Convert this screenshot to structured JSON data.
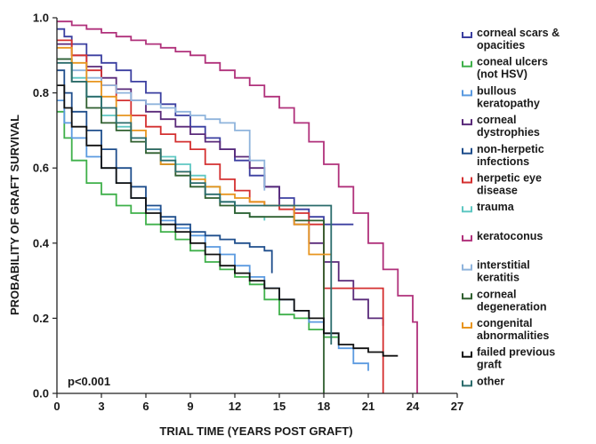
{
  "chart_data": {
    "type": "line",
    "step": true,
    "xlabel": "TRIAL TIME (YEARS POST GRAFT)",
    "ylabel": "PROBABILITY OF GRAFT SURVIVAL",
    "xlim": [
      0,
      27
    ],
    "ylim": [
      0,
      1
    ],
    "xticks": [
      "0",
      "3",
      "6",
      "9",
      "12",
      "15",
      "18",
      "21",
      "24",
      "27"
    ],
    "yticks": [
      "0.0",
      "0.2",
      "0.4",
      "0.6",
      "0.8",
      "1.0"
    ],
    "annotation": "p<0.001",
    "legend_position": "right",
    "series": [
      {
        "name": "corneal scars & opacities",
        "color": "#3b3fa0",
        "points": [
          [
            0,
            0.97
          ],
          [
            0.5,
            0.95
          ],
          [
            1,
            0.93
          ],
          [
            2,
            0.9
          ],
          [
            3,
            0.88
          ],
          [
            4,
            0.86
          ],
          [
            5,
            0.83
          ],
          [
            6,
            0.8
          ],
          [
            7,
            0.77
          ],
          [
            8,
            0.74
          ],
          [
            9,
            0.71
          ],
          [
            10,
            0.68
          ],
          [
            11,
            0.65
          ],
          [
            12,
            0.62
          ],
          [
            13,
            0.58
          ],
          [
            14,
            0.55
          ],
          [
            15,
            0.52
          ],
          [
            16,
            0.49
          ],
          [
            17,
            0.47
          ],
          [
            18,
            0.45
          ],
          [
            20,
            0.45
          ]
        ]
      },
      {
        "name": "coneal ulcers (not HSV)",
        "color": "#3fb04a",
        "points": [
          [
            0,
            0.75
          ],
          [
            0.5,
            0.68
          ],
          [
            1,
            0.62
          ],
          [
            2,
            0.56
          ],
          [
            3,
            0.53
          ],
          [
            4,
            0.5
          ],
          [
            5,
            0.48
          ],
          [
            6,
            0.45
          ],
          [
            7,
            0.43
          ],
          [
            8,
            0.41
          ],
          [
            9,
            0.38
          ],
          [
            10,
            0.35
          ],
          [
            11,
            0.33
          ],
          [
            12,
            0.31
          ],
          [
            13,
            0.29
          ],
          [
            14,
            0.25
          ],
          [
            15,
            0.21
          ],
          [
            16,
            0.2
          ],
          [
            17,
            0.17
          ],
          [
            18,
            0.15
          ],
          [
            19,
            0.13
          ]
        ]
      },
      {
        "name": "bullous keratopathy",
        "color": "#5b9ae0",
        "points": [
          [
            0,
            0.78
          ],
          [
            0.5,
            0.72
          ],
          [
            1,
            0.68
          ],
          [
            2,
            0.63
          ],
          [
            3,
            0.6
          ],
          [
            4,
            0.56
          ],
          [
            5,
            0.52
          ],
          [
            6,
            0.49
          ],
          [
            7,
            0.46
          ],
          [
            8,
            0.44
          ],
          [
            9,
            0.42
          ],
          [
            10,
            0.39
          ],
          [
            11,
            0.37
          ],
          [
            12,
            0.34
          ],
          [
            13,
            0.31
          ],
          [
            14,
            0.28
          ],
          [
            15,
            0.25
          ],
          [
            16,
            0.22
          ],
          [
            17,
            0.19
          ],
          [
            18,
            0.16
          ],
          [
            19,
            0.12
          ],
          [
            20,
            0.08
          ],
          [
            21,
            0.06
          ]
        ]
      },
      {
        "name": "corneal dystrophies",
        "color": "#5a2a7a",
        "points": [
          [
            0,
            0.93
          ],
          [
            1,
            0.9
          ],
          [
            2,
            0.87
          ],
          [
            3,
            0.84
          ],
          [
            4,
            0.81
          ],
          [
            5,
            0.78
          ],
          [
            6,
            0.75
          ],
          [
            7,
            0.73
          ],
          [
            8,
            0.71
          ],
          [
            9,
            0.69
          ],
          [
            10,
            0.67
          ],
          [
            11,
            0.65
          ],
          [
            12,
            0.63
          ],
          [
            13,
            0.6
          ],
          [
            14,
            0.55
          ],
          [
            15,
            0.5
          ],
          [
            16,
            0.45
          ],
          [
            17,
            0.4
          ],
          [
            18,
            0.35
          ],
          [
            19,
            0.3
          ],
          [
            20,
            0.25
          ],
          [
            21,
            0.2
          ],
          [
            22,
            0.18
          ]
        ]
      },
      {
        "name": "non-herpetic infections",
        "color": "#1f4e8c",
        "points": [
          [
            0,
            0.86
          ],
          [
            0.5,
            0.8
          ],
          [
            1,
            0.75
          ],
          [
            2,
            0.7
          ],
          [
            3,
            0.65
          ],
          [
            4,
            0.6
          ],
          [
            5,
            0.55
          ],
          [
            6,
            0.5
          ],
          [
            7,
            0.47
          ],
          [
            8,
            0.45
          ],
          [
            9,
            0.43
          ],
          [
            10,
            0.42
          ],
          [
            11,
            0.41
          ],
          [
            12,
            0.4
          ],
          [
            13,
            0.39
          ],
          [
            14,
            0.38
          ],
          [
            14.5,
            0.32
          ]
        ]
      },
      {
        "name": "herpetic eye disease",
        "color": "#d43030",
        "points": [
          [
            0,
            0.94
          ],
          [
            1,
            0.9
          ],
          [
            2,
            0.86
          ],
          [
            3,
            0.82
          ],
          [
            4,
            0.78
          ],
          [
            5,
            0.74
          ],
          [
            6,
            0.71
          ],
          [
            7,
            0.69
          ],
          [
            8,
            0.67
          ],
          [
            9,
            0.65
          ],
          [
            10,
            0.61
          ],
          [
            11,
            0.57
          ],
          [
            12,
            0.54
          ],
          [
            13,
            0.51
          ],
          [
            14,
            0.5
          ],
          [
            15,
            0.49
          ],
          [
            16,
            0.48
          ],
          [
            17,
            0.45
          ],
          [
            18,
            0.28
          ],
          [
            20,
            0.28
          ],
          [
            21,
            0.28
          ],
          [
            22,
            0.0
          ]
        ]
      },
      {
        "name": "trauma",
        "color": "#5ec7c2",
        "points": [
          [
            0,
            0.89
          ],
          [
            1,
            0.84
          ],
          [
            2,
            0.79
          ],
          [
            3,
            0.74
          ],
          [
            4,
            0.71
          ],
          [
            5,
            0.68
          ],
          [
            6,
            0.65
          ],
          [
            7,
            0.63
          ],
          [
            8,
            0.61
          ],
          [
            9,
            0.58
          ],
          [
            10,
            0.55
          ],
          [
            11,
            0.51
          ],
          [
            12,
            0.48
          ],
          [
            13,
            0.47
          ],
          [
            14,
            0.46
          ]
        ]
      },
      {
        "name": "keratoconus",
        "color": "#b0317b",
        "points": [
          [
            0,
            0.99
          ],
          [
            1,
            0.98
          ],
          [
            2,
            0.97
          ],
          [
            3,
            0.96
          ],
          [
            4,
            0.95
          ],
          [
            5,
            0.94
          ],
          [
            6,
            0.93
          ],
          [
            7,
            0.92
          ],
          [
            8,
            0.91
          ],
          [
            9,
            0.9
          ],
          [
            10,
            0.88
          ],
          [
            11,
            0.86
          ],
          [
            12,
            0.84
          ],
          [
            13,
            0.82
          ],
          [
            14,
            0.79
          ],
          [
            15,
            0.76
          ],
          [
            16,
            0.72
          ],
          [
            17,
            0.67
          ],
          [
            18,
            0.61
          ],
          [
            19,
            0.55
          ],
          [
            20,
            0.48
          ],
          [
            21,
            0.4
          ],
          [
            22,
            0.33
          ],
          [
            23,
            0.26
          ],
          [
            24,
            0.19
          ],
          [
            24.3,
            0.0
          ]
        ]
      },
      {
        "name": "interstitial keratitis",
        "color": "#8fb4dc",
        "points": [
          [
            0,
            0.89
          ],
          [
            1,
            0.86
          ],
          [
            2,
            0.84
          ],
          [
            3,
            0.82
          ],
          [
            4,
            0.8
          ],
          [
            5,
            0.78
          ],
          [
            6,
            0.77
          ],
          [
            7,
            0.76
          ],
          [
            8,
            0.75
          ],
          [
            9,
            0.74
          ],
          [
            10,
            0.73
          ],
          [
            11,
            0.72
          ],
          [
            12,
            0.7
          ],
          [
            13,
            0.62
          ],
          [
            14,
            0.54
          ]
        ]
      },
      {
        "name": "corneal degeneration",
        "color": "#2f5f2f",
        "points": [
          [
            0,
            0.89
          ],
          [
            1,
            0.83
          ],
          [
            2,
            0.76
          ],
          [
            3,
            0.72
          ],
          [
            4,
            0.7
          ],
          [
            5,
            0.67
          ],
          [
            6,
            0.64
          ],
          [
            7,
            0.61
          ],
          [
            8,
            0.58
          ],
          [
            9,
            0.55
          ],
          [
            10,
            0.52
          ],
          [
            11,
            0.5
          ],
          [
            12,
            0.48
          ],
          [
            13,
            0.47
          ],
          [
            14,
            0.47
          ],
          [
            15,
            0.47
          ],
          [
            16,
            0.46
          ],
          [
            17,
            0.46
          ],
          [
            18,
            0.0
          ]
        ]
      },
      {
        "name": "congenital abnormalities",
        "color": "#e8951f",
        "points": [
          [
            0,
            0.92
          ],
          [
            1,
            0.88
          ],
          [
            2,
            0.83
          ],
          [
            3,
            0.79
          ],
          [
            4,
            0.74
          ],
          [
            5,
            0.7
          ],
          [
            6,
            0.65
          ],
          [
            7,
            0.61
          ],
          [
            8,
            0.59
          ],
          [
            9,
            0.57
          ],
          [
            10,
            0.55
          ],
          [
            11,
            0.53
          ],
          [
            12,
            0.52
          ],
          [
            13,
            0.51
          ],
          [
            14,
            0.5
          ],
          [
            15,
            0.5
          ],
          [
            16,
            0.45
          ],
          [
            17,
            0.37
          ],
          [
            18.5,
            0.37
          ]
        ]
      },
      {
        "name": "failed previous graft",
        "color": "#111111",
        "points": [
          [
            0,
            0.82
          ],
          [
            0.5,
            0.76
          ],
          [
            1,
            0.71
          ],
          [
            2,
            0.66
          ],
          [
            3,
            0.6
          ],
          [
            4,
            0.56
          ],
          [
            5,
            0.52
          ],
          [
            6,
            0.48
          ],
          [
            7,
            0.45
          ],
          [
            8,
            0.43
          ],
          [
            9,
            0.4
          ],
          [
            10,
            0.37
          ],
          [
            11,
            0.34
          ],
          [
            12,
            0.32
          ],
          [
            13,
            0.3
          ],
          [
            14,
            0.28
          ],
          [
            15,
            0.25
          ],
          [
            16,
            0.22
          ],
          [
            17,
            0.2
          ],
          [
            18,
            0.16
          ],
          [
            19,
            0.13
          ],
          [
            20,
            0.12
          ],
          [
            21,
            0.11
          ],
          [
            22,
            0.1
          ],
          [
            23,
            0.1
          ]
        ]
      },
      {
        "name": "other",
        "color": "#2a6b6b",
        "points": [
          [
            0,
            0.88
          ],
          [
            1,
            0.83
          ],
          [
            2,
            0.79
          ],
          [
            3,
            0.76
          ],
          [
            4,
            0.72
          ],
          [
            5,
            0.68
          ],
          [
            6,
            0.65
          ],
          [
            7,
            0.62
          ],
          [
            8,
            0.59
          ],
          [
            9,
            0.56
          ],
          [
            10,
            0.53
          ],
          [
            11,
            0.51
          ],
          [
            12,
            0.5
          ],
          [
            13,
            0.5
          ],
          [
            14,
            0.5
          ],
          [
            15,
            0.5
          ],
          [
            16,
            0.5
          ],
          [
            17,
            0.5
          ],
          [
            18,
            0.5
          ],
          [
            18.5,
            0.13
          ]
        ]
      }
    ]
  },
  "legend": {
    "entries": [
      {
        "line1": "corneal scars &",
        "line2": "opacities",
        "color": "#3b3fa0"
      },
      {
        "line1": "coneal ulcers",
        "line2": "(not HSV)",
        "color": "#3fb04a"
      },
      {
        "line1": "bullous",
        "line2": "keratopathy",
        "color": "#5b9ae0"
      },
      {
        "line1": "corneal",
        "line2": "dystrophies",
        "color": "#5a2a7a"
      },
      {
        "line1": "non-herpetic",
        "line2": "infections",
        "color": "#1f4e8c"
      },
      {
        "line1": "herpetic eye",
        "line2": "disease",
        "color": "#d43030"
      },
      {
        "line1": "trauma",
        "line2": "",
        "color": "#5ec7c2"
      },
      {
        "line1": "keratoconus",
        "line2": "",
        "color": "#b0317b"
      },
      {
        "line1": "interstitial",
        "line2": "keratitis",
        "color": "#8fb4dc"
      },
      {
        "line1": "corneal",
        "line2": "degeneration",
        "color": "#2f5f2f"
      },
      {
        "line1": "congenital",
        "line2": "abnormalities",
        "color": "#e8951f"
      },
      {
        "line1": "failed previous",
        "line2": "graft",
        "color": "#111111"
      },
      {
        "line1": "other",
        "line2": "",
        "color": "#2a6b6b"
      }
    ]
  }
}
